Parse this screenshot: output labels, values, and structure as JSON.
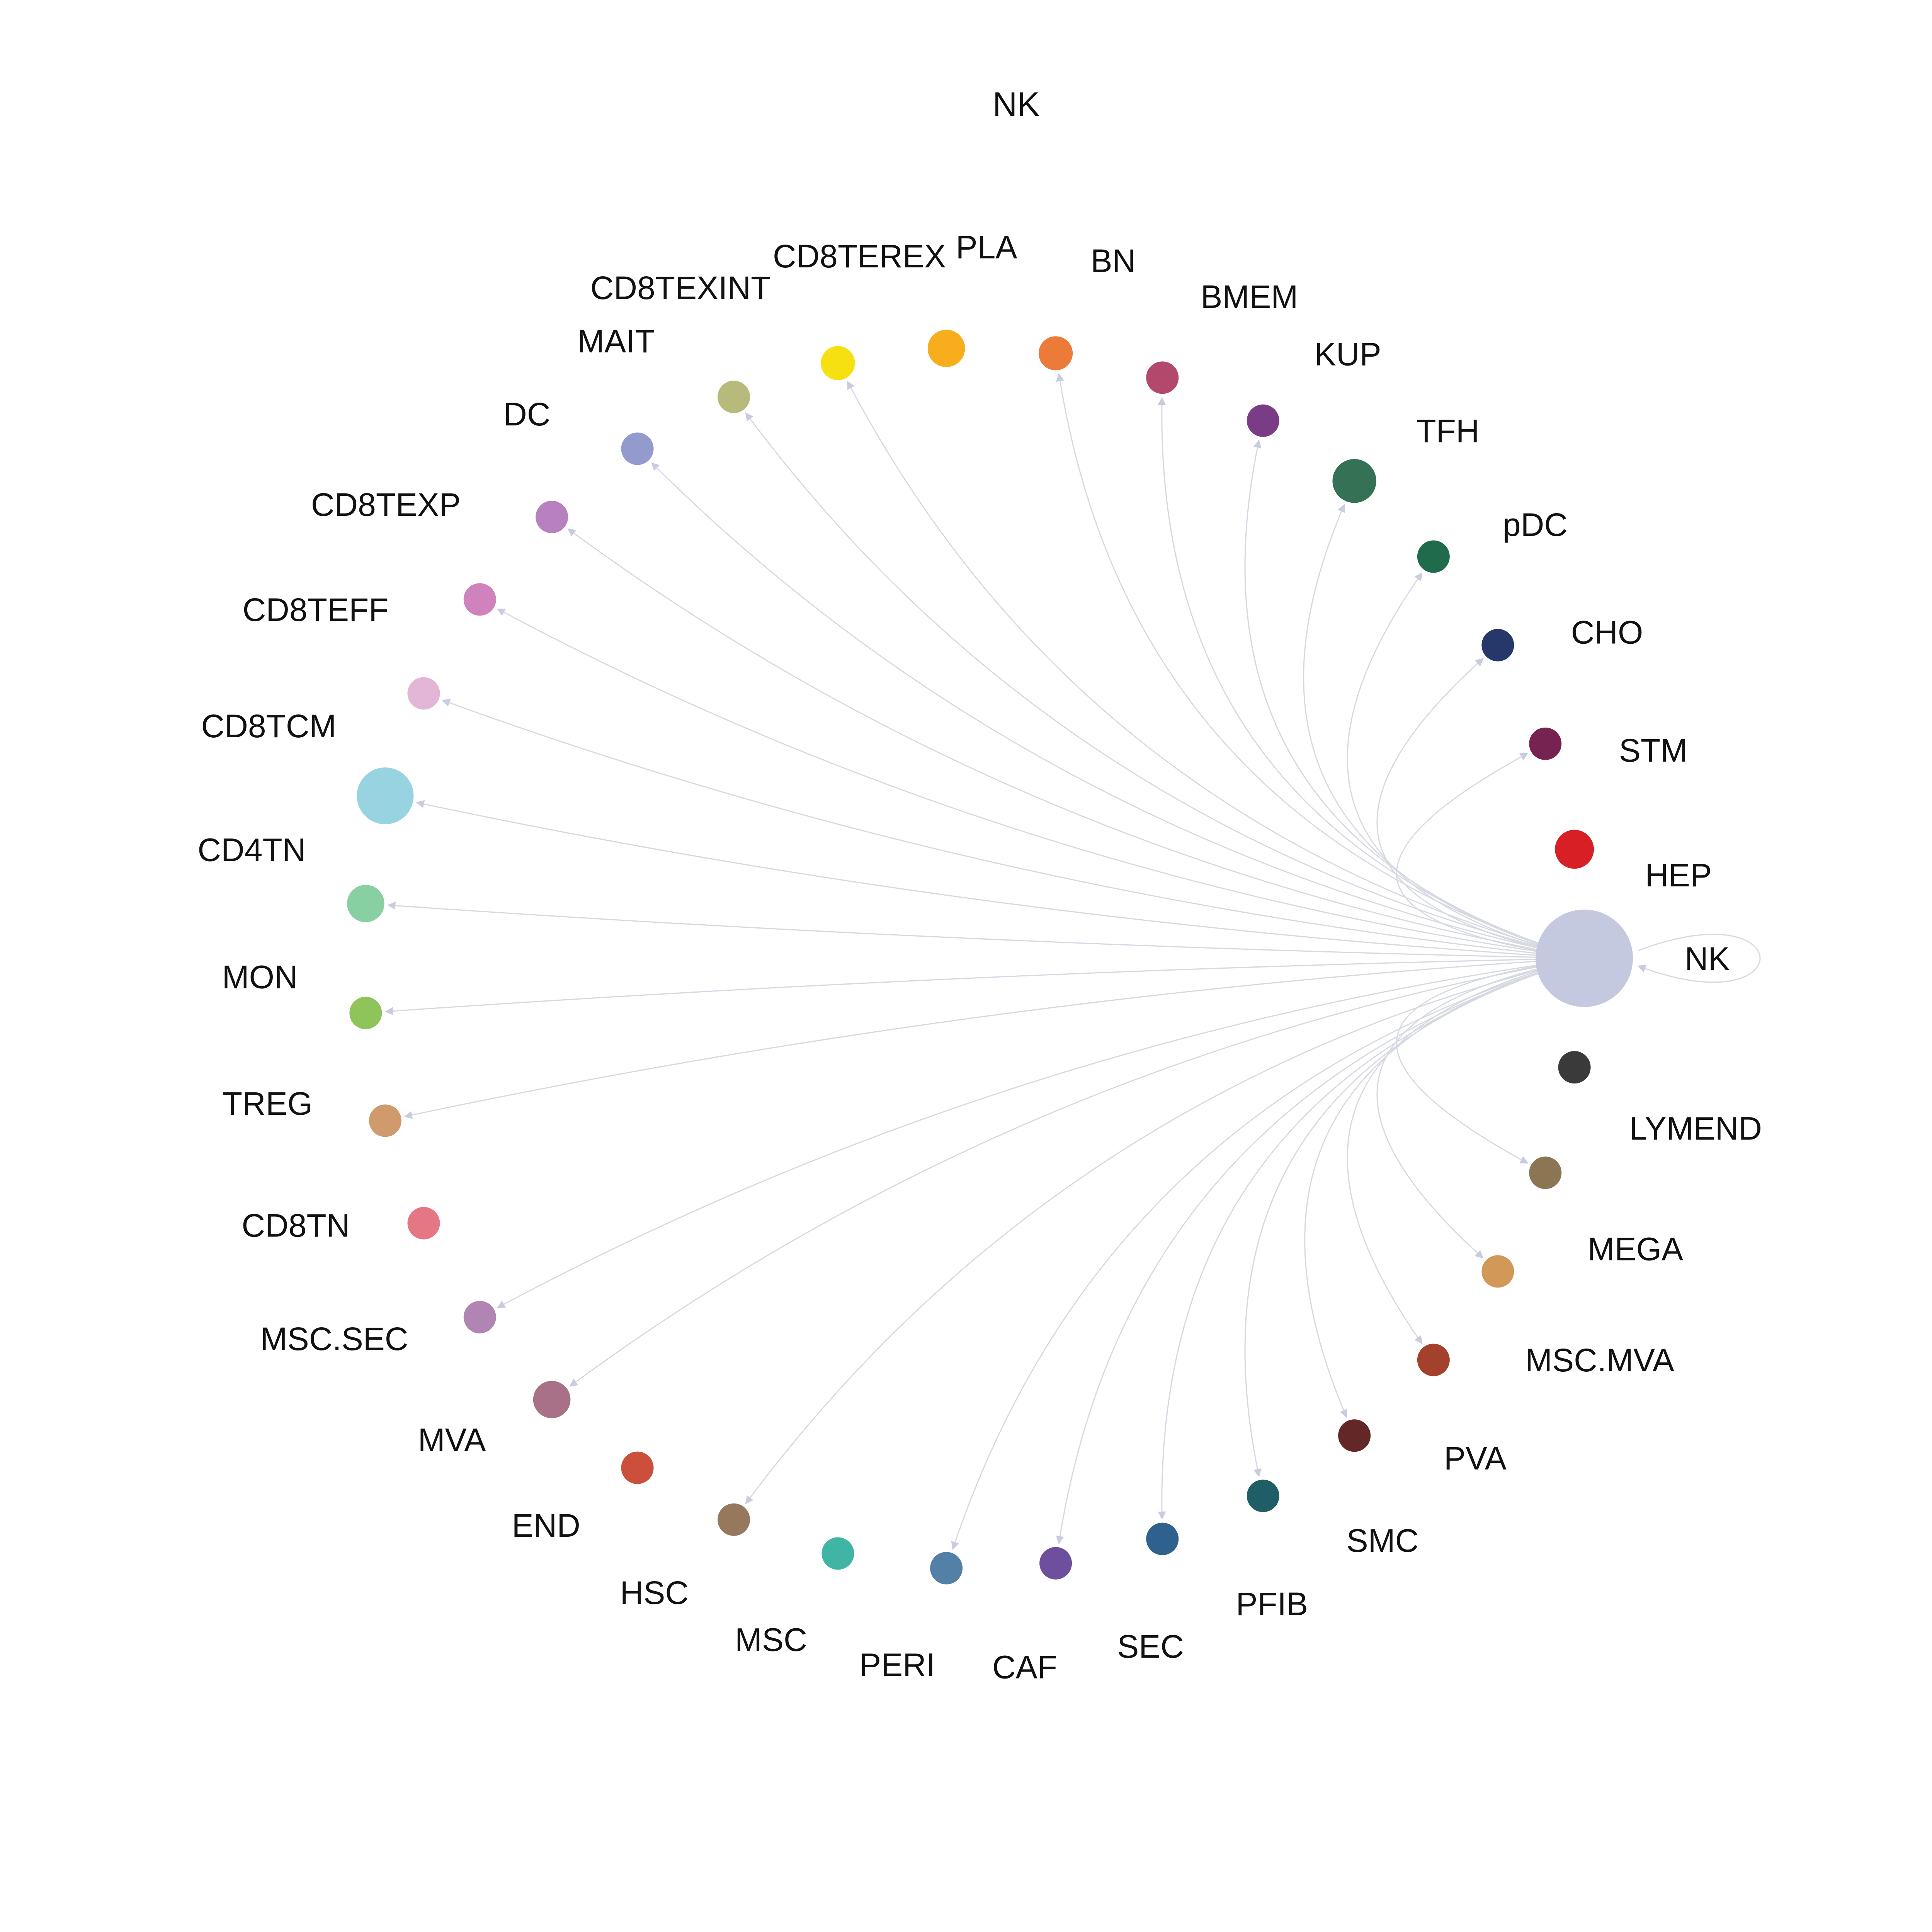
{
  "title": "NK",
  "source": "NK",
  "edge_color": "#d6d8e2",
  "nodes": [
    {
      "name": "NK",
      "color": "#c4c9df",
      "size": 3.0
    },
    {
      "name": "LYMEND",
      "color": "#3a3a3a",
      "size": 1.0
    },
    {
      "name": "MEGA",
      "color": "#8c7552",
      "size": 1.0
    },
    {
      "name": "MSC.MVA",
      "color": "#d19858",
      "size": 1.0
    },
    {
      "name": "PVA",
      "color": "#a3412c",
      "size": 1.0
    },
    {
      "name": "SMC",
      "color": "#632727",
      "size": 1.0
    },
    {
      "name": "PFIB",
      "color": "#1f5e66",
      "size": 1.0
    },
    {
      "name": "SEC",
      "color": "#2f618f",
      "size": 1.0
    },
    {
      "name": "CAF",
      "color": "#6d4f9e",
      "size": 1.0
    },
    {
      "name": "PERI",
      "color": "#5380a6",
      "size": 1.0
    },
    {
      "name": "MSC",
      "color": "#40b5a6",
      "size": 1.0
    },
    {
      "name": "HSC",
      "color": "#96795c",
      "size": 1.0
    },
    {
      "name": "END",
      "color": "#cc4f3b",
      "size": 1.0
    },
    {
      "name": "MVA",
      "color": "#a87188",
      "size": 1.15
    },
    {
      "name": "MSC.SEC",
      "color": "#b085b3",
      "size": 1.0
    },
    {
      "name": "CD8TN",
      "color": "#e57785",
      "size": 1.0
    },
    {
      "name": "TREG",
      "color": "#cf9a6c",
      "size": 1.0
    },
    {
      "name": "MON",
      "color": "#8fc45a",
      "size": 1.0
    },
    {
      "name": "CD4TN",
      "color": "#88cfa1",
      "size": 1.15
    },
    {
      "name": "CD8TCM",
      "color": "#98d3e1",
      "size": 1.75
    },
    {
      "name": "CD8TEFF",
      "color": "#e3b5d6",
      "size": 1.0
    },
    {
      "name": "CD8TEXP",
      "color": "#cf82bc",
      "size": 1.0
    },
    {
      "name": "DC",
      "color": "#b780bf",
      "size": 1.0
    },
    {
      "name": "MAIT",
      "color": "#939ace",
      "size": 1.0
    },
    {
      "name": "CD8TEXINT",
      "color": "#b8ba7c",
      "size": 1.0
    },
    {
      "name": "CD8TEREX",
      "color": "#f7e011",
      "size": 1.05
    },
    {
      "name": "PLA",
      "color": "#f8ad1d",
      "size": 1.15
    },
    {
      "name": "BN",
      "color": "#ec7a38",
      "size": 1.05
    },
    {
      "name": "BMEM",
      "color": "#b2486c",
      "size": 1.0
    },
    {
      "name": "KUP",
      "color": "#7a3d85",
      "size": 1.0
    },
    {
      "name": "TFH",
      "color": "#357255",
      "size": 1.35
    },
    {
      "name": "pDC",
      "color": "#1f6b4b",
      "size": 1.0
    },
    {
      "name": "CHO",
      "color": "#26376a",
      "size": 1.0
    },
    {
      "name": "STM",
      "color": "#772352",
      "size": 1.0
    },
    {
      "name": "HEP",
      "color": "#d81f26",
      "size": 1.2
    }
  ],
  "edges": [
    {
      "from": "NK",
      "to": "NK"
    },
    {
      "from": "NK",
      "to": "MEGA"
    },
    {
      "from": "NK",
      "to": "MSC.MVA"
    },
    {
      "from": "NK",
      "to": "PVA"
    },
    {
      "from": "NK",
      "to": "SMC"
    },
    {
      "from": "NK",
      "to": "PFIB"
    },
    {
      "from": "NK",
      "to": "SEC"
    },
    {
      "from": "NK",
      "to": "CAF"
    },
    {
      "from": "NK",
      "to": "PERI"
    },
    {
      "from": "NK",
      "to": "HSC"
    },
    {
      "from": "NK",
      "to": "MVA"
    },
    {
      "from": "NK",
      "to": "MSC.SEC"
    },
    {
      "from": "NK",
      "to": "TREG"
    },
    {
      "from": "NK",
      "to": "MON"
    },
    {
      "from": "NK",
      "to": "CD4TN"
    },
    {
      "from": "NK",
      "to": "CD8TCM"
    },
    {
      "from": "NK",
      "to": "CD8TEFF"
    },
    {
      "from": "NK",
      "to": "CD8TEXP"
    },
    {
      "from": "NK",
      "to": "DC"
    },
    {
      "from": "NK",
      "to": "MAIT"
    },
    {
      "from": "NK",
      "to": "CD8TEXINT"
    },
    {
      "from": "NK",
      "to": "CD8TEREX"
    },
    {
      "from": "NK",
      "to": "BN"
    },
    {
      "from": "NK",
      "to": "BMEM"
    },
    {
      "from": "NK",
      "to": "KUP"
    },
    {
      "from": "NK",
      "to": "TFH"
    },
    {
      "from": "NK",
      "to": "pDC"
    },
    {
      "from": "NK",
      "to": "CHO"
    },
    {
      "from": "NK",
      "to": "STM"
    }
  ]
}
